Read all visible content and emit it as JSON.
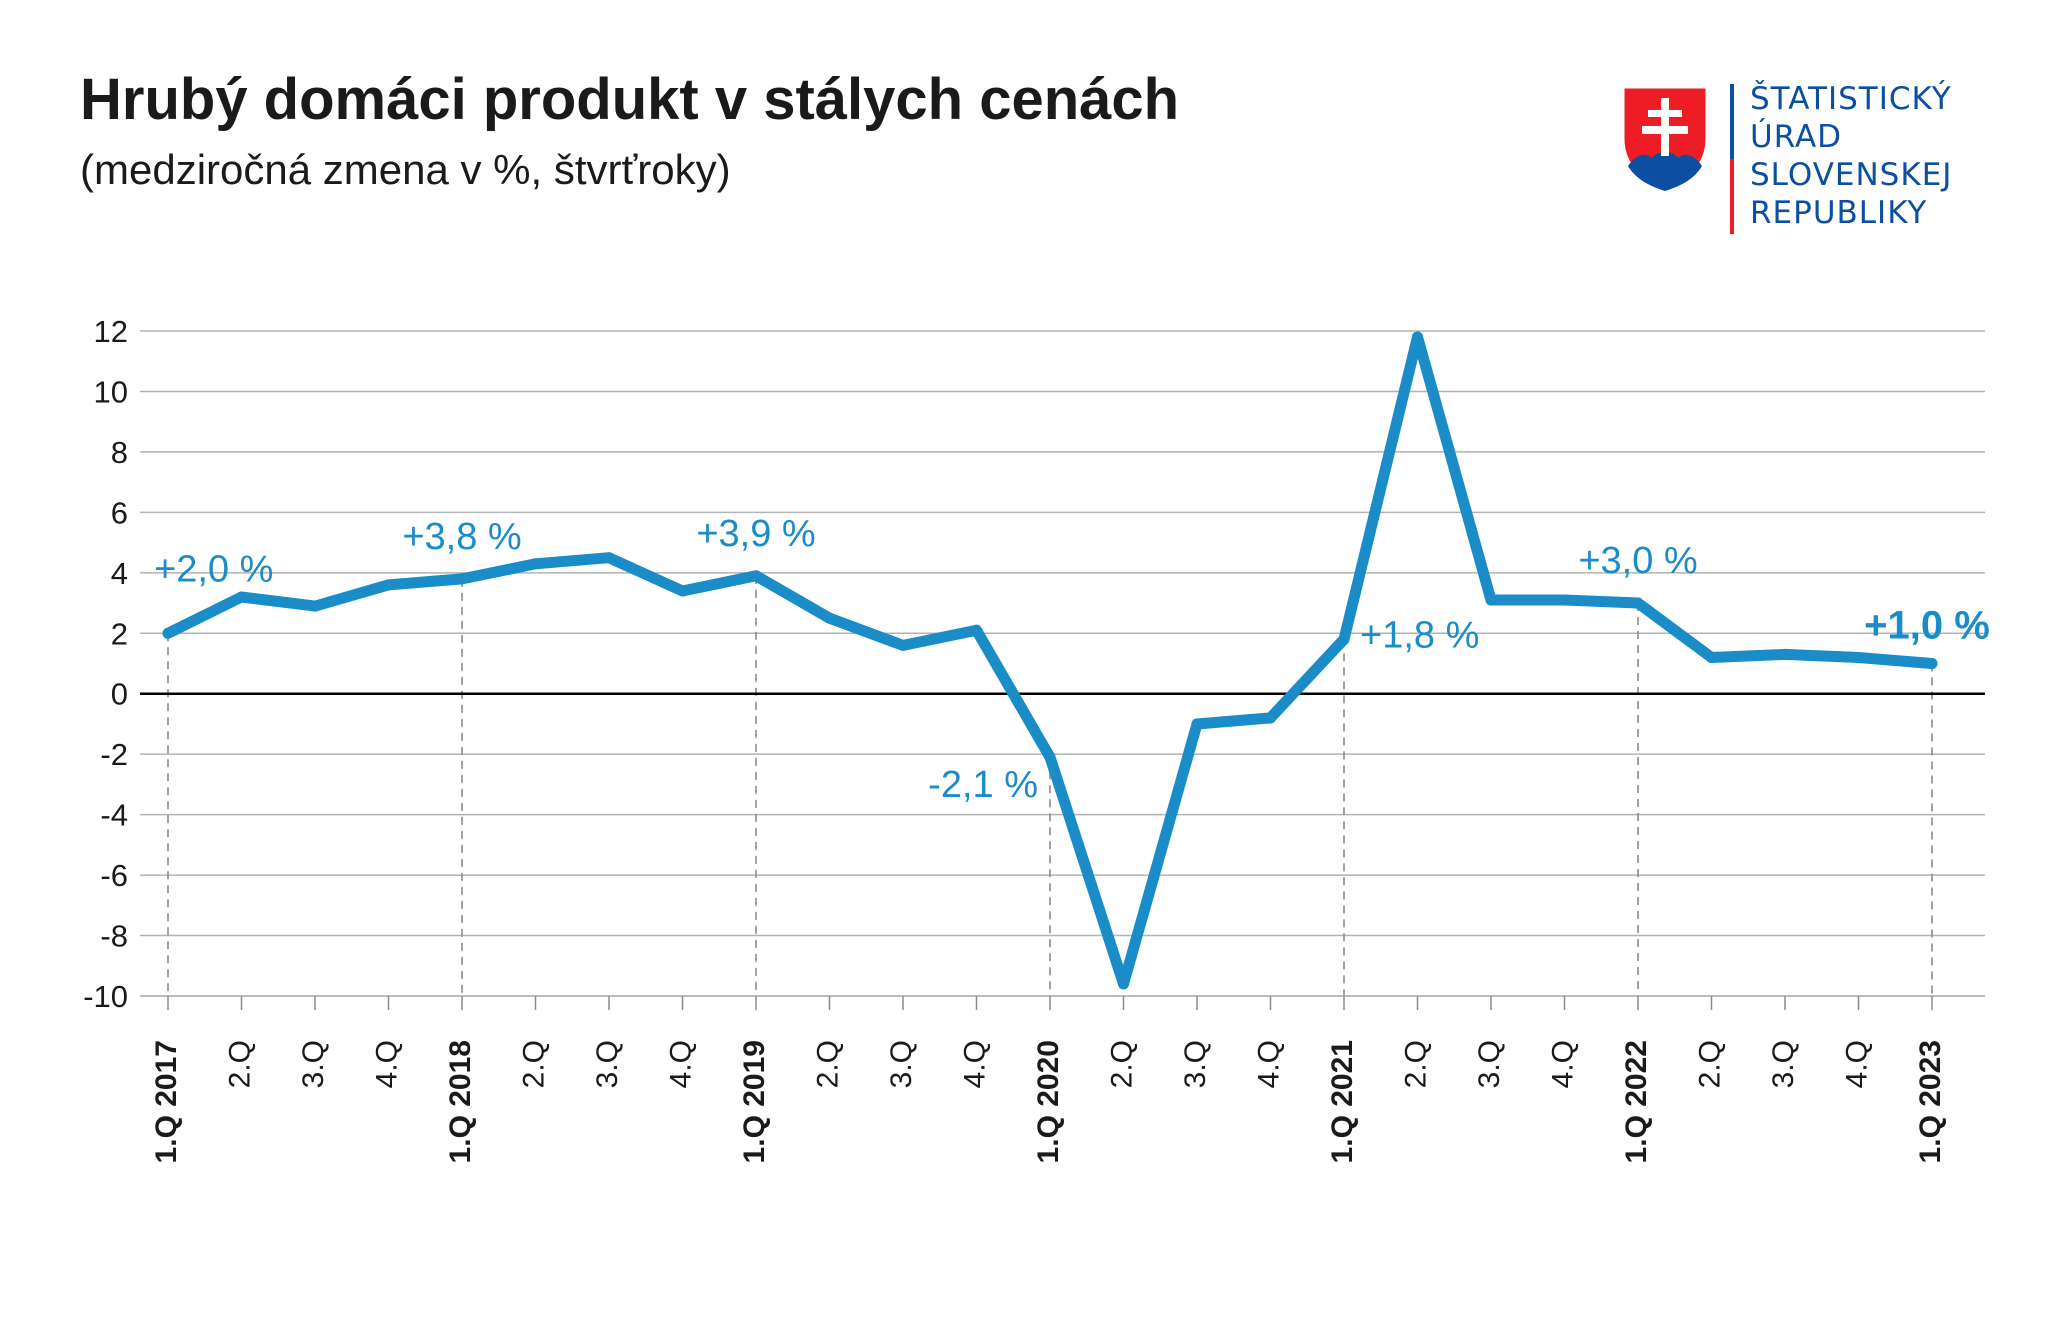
{
  "header": {
    "title": "Hrubý domáci produkt v stálych cenách",
    "subtitle": "(medziročná zmena v %, štvrťroky)"
  },
  "logo": {
    "lines": [
      "ŠTATISTICKÝ",
      "ÚRAD",
      "SLOVENSKEJ",
      "REPUBLIKY"
    ],
    "colors": {
      "blue": "#0b4ea2",
      "red": "#ee1c25"
    }
  },
  "chart_data": {
    "type": "line",
    "title": "",
    "xlabel": "",
    "ylabel": "",
    "ylim": [
      -10,
      12
    ],
    "yticks": [
      12,
      10,
      8,
      6,
      4,
      2,
      0,
      -2,
      -4,
      -6,
      -8,
      -10
    ],
    "grid": true,
    "categories": [
      "1.Q 2017",
      "2.Q",
      "3.Q",
      "4.Q",
      "1.Q 2018",
      "2.Q",
      "3.Q",
      "4.Q",
      "1.Q 2019",
      "2.Q",
      "3.Q",
      "4.Q",
      "1.Q 2020",
      "2.Q",
      "3.Q",
      "4.Q",
      "1.Q 2021",
      "2.Q",
      "3.Q",
      "4.Q",
      "1.Q 2022",
      "2.Q",
      "3.Q",
      "4.Q",
      "1.Q 2023"
    ],
    "bold_categories": [
      0,
      4,
      8,
      12,
      16,
      20,
      24
    ],
    "series": [
      {
        "color": "#1a8cc7",
        "values": [
          2.0,
          3.2,
          2.9,
          3.6,
          3.8,
          4.3,
          4.5,
          3.4,
          3.9,
          2.5,
          1.6,
          2.1,
          -2.1,
          -9.6,
          -1.0,
          -0.8,
          1.8,
          11.8,
          3.1,
          3.1,
          3.0,
          1.2,
          1.3,
          1.2,
          1.0
        ]
      }
    ],
    "annotations": [
      {
        "index": 0,
        "text": "+2,0 %",
        "bold": false,
        "placement": "above"
      },
      {
        "index": 4,
        "text": "+3,8 %",
        "bold": false,
        "placement": "above"
      },
      {
        "index": 8,
        "text": "+3,9 %",
        "bold": false,
        "placement": "above"
      },
      {
        "index": 12,
        "text": "-2,1 %",
        "bold": false,
        "placement": "left"
      },
      {
        "index": 16,
        "text": "+1,8 %",
        "bold": false,
        "placement": "right"
      },
      {
        "index": 20,
        "text": "+3,0 %",
        "bold": false,
        "placement": "above"
      },
      {
        "index": 24,
        "text": "+1,0 %",
        "bold": true,
        "placement": "above"
      }
    ],
    "colors": {
      "line": "#1a8cc7",
      "label": "#1a8cc7",
      "grid": "#b3b3b3",
      "axis": "#000000",
      "text": "#1a1a1a"
    }
  }
}
